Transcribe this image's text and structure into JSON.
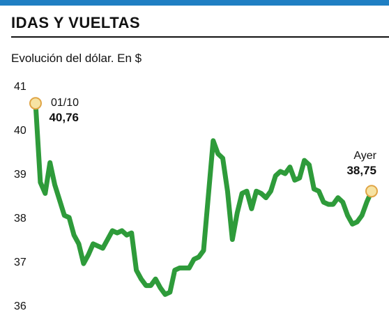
{
  "header": {
    "title": "IDAS Y VUELTAS",
    "subtitle": "Evolución del dólar. En $"
  },
  "colors": {
    "accent_bar": "#1f7fc3",
    "line": "#2e9b3a",
    "marker_fill": "#f6e3a3",
    "marker_stroke": "#e0a546"
  },
  "chart_data": {
    "type": "line",
    "title": "",
    "xlabel": "",
    "ylabel": "",
    "ylim": [
      36,
      41
    ],
    "yticks": [
      "41",
      "40",
      "39",
      "38",
      "37",
      "36"
    ],
    "grid": false,
    "series": [
      {
        "values": [
          40.6,
          38.8,
          38.55,
          39.25,
          38.75,
          38.4,
          38.05,
          38.0,
          37.6,
          37.4,
          36.95,
          37.15,
          37.4,
          37.35,
          37.3,
          37.5,
          37.7,
          37.65,
          37.7,
          37.6,
          37.65,
          36.8,
          36.6,
          36.45,
          36.45,
          36.6,
          36.4,
          36.25,
          36.3,
          36.8,
          36.85,
          36.85,
          36.85,
          37.05,
          37.1,
          37.25,
          38.5,
          39.75,
          39.45,
          39.35,
          38.6,
          37.5,
          38.1,
          38.55,
          38.6,
          38.2,
          38.6,
          38.55,
          38.45,
          38.6,
          38.95,
          39.05,
          39.0,
          39.15,
          38.85,
          38.9,
          39.3,
          39.2,
          38.65,
          38.6,
          38.35,
          38.3,
          38.3,
          38.45,
          38.35,
          38.05,
          37.85,
          37.9,
          38.05,
          38.35,
          38.6
        ]
      }
    ],
    "annotations": [
      {
        "label": "01/10",
        "value": "40,76"
      },
      {
        "label": "Ayer",
        "value": "38,75"
      }
    ]
  }
}
